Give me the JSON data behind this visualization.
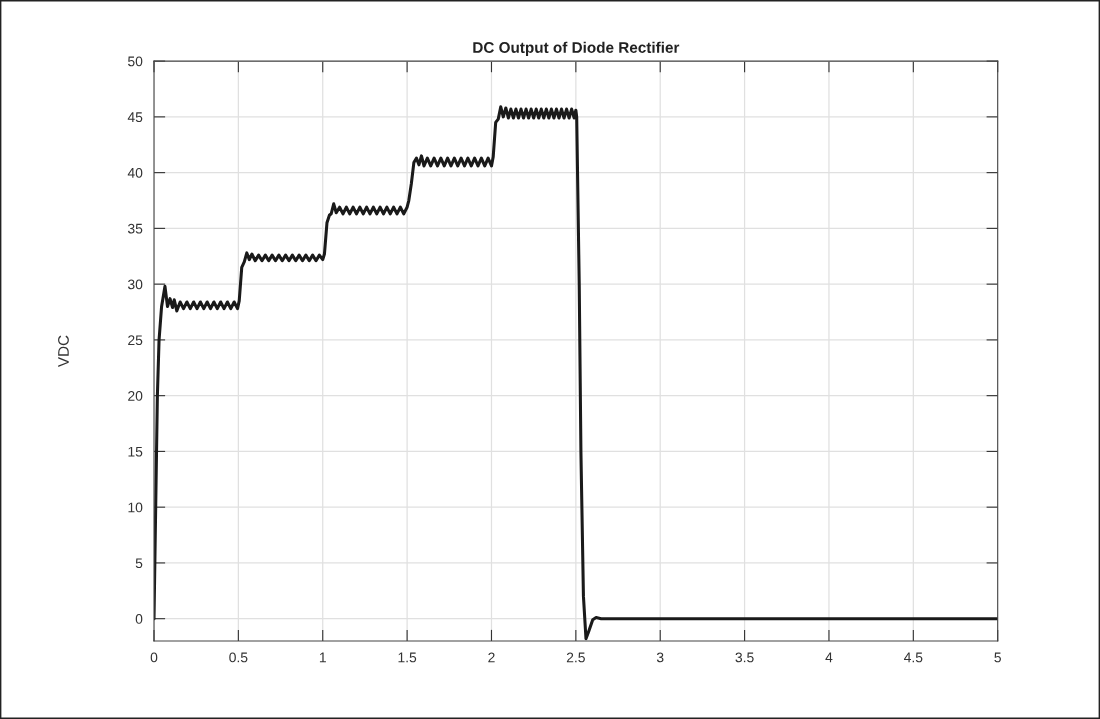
{
  "chart_data": {
    "type": "line",
    "title": "DC Output of Diode Rectifier",
    "ylabel": "VDC",
    "xlim": [
      0,
      5
    ],
    "xticks": [
      0,
      0.5,
      1,
      1.5,
      2,
      2.5,
      3,
      3.5,
      4,
      4.5,
      5
    ],
    "ylim": [
      -2,
      50
    ],
    "yticks": [
      0,
      5,
      10,
      15,
      20,
      25,
      30,
      35,
      40,
      45,
      50
    ],
    "grid": true,
    "legend": false,
    "series": [
      {
        "color": "#1a1a1a",
        "x": [
          0,
          0.01,
          0.02,
          0.03,
          0.045,
          0.065,
          0.08,
          0.095,
          0.11,
          0.12,
          0.135,
          0.155,
          0.175,
          0.195,
          0.215,
          0.235,
          0.255,
          0.275,
          0.295,
          0.315,
          0.335,
          0.355,
          0.375,
          0.395,
          0.415,
          0.435,
          0.455,
          0.475,
          0.495,
          0.505,
          0.52,
          0.535,
          0.55,
          0.565,
          0.58,
          0.6,
          0.62,
          0.64,
          0.66,
          0.68,
          0.7,
          0.72,
          0.74,
          0.76,
          0.78,
          0.8,
          0.82,
          0.84,
          0.86,
          0.88,
          0.9,
          0.92,
          0.94,
          0.96,
          0.98,
          1.0,
          1.01,
          1.025,
          1.04,
          1.05,
          1.065,
          1.08,
          1.1,
          1.12,
          1.14,
          1.16,
          1.18,
          1.2,
          1.22,
          1.24,
          1.26,
          1.28,
          1.3,
          1.32,
          1.34,
          1.36,
          1.38,
          1.4,
          1.42,
          1.44,
          1.46,
          1.48,
          1.5,
          1.51,
          1.525,
          1.54,
          1.555,
          1.57,
          1.585,
          1.6,
          1.62,
          1.64,
          1.66,
          1.68,
          1.7,
          1.72,
          1.74,
          1.76,
          1.78,
          1.8,
          1.82,
          1.84,
          1.86,
          1.88,
          1.9,
          1.92,
          1.94,
          1.96,
          1.98,
          2.0,
          2.01,
          2.025,
          2.04,
          2.055,
          2.07,
          2.085,
          2.1,
          2.115,
          2.13,
          2.145,
          2.16,
          2.175,
          2.19,
          2.205,
          2.22,
          2.235,
          2.25,
          2.265,
          2.28,
          2.295,
          2.31,
          2.325,
          2.34,
          2.355,
          2.37,
          2.385,
          2.4,
          2.415,
          2.43,
          2.445,
          2.46,
          2.475,
          2.49,
          2.5,
          2.505,
          2.51,
          2.52,
          2.53,
          2.545,
          2.56,
          2.575,
          2.6,
          2.62,
          2.65,
          3,
          5
        ],
        "values": [
          0,
          10,
          20,
          25,
          28,
          29.8,
          28.0,
          28.7,
          27.9,
          28.6,
          27.6,
          28.4,
          27.8,
          28.4,
          27.8,
          28.4,
          27.8,
          28.4,
          27.8,
          28.4,
          27.8,
          28.4,
          27.8,
          28.4,
          27.8,
          28.4,
          27.8,
          28.4,
          27.8,
          28.5,
          31.5,
          32.0,
          32.8,
          32.2,
          32.7,
          32.1,
          32.6,
          32.1,
          32.6,
          32.1,
          32.6,
          32.1,
          32.6,
          32.1,
          32.6,
          32.1,
          32.6,
          32.1,
          32.6,
          32.1,
          32.6,
          32.1,
          32.6,
          32.1,
          32.6,
          32.2,
          32.7,
          35.5,
          36.2,
          36.3,
          37.2,
          36.4,
          36.9,
          36.3,
          36.9,
          36.3,
          36.9,
          36.3,
          36.9,
          36.3,
          36.9,
          36.3,
          36.9,
          36.3,
          36.9,
          36.3,
          36.9,
          36.3,
          36.9,
          36.3,
          36.9,
          36.3,
          36.9,
          37.5,
          39.0,
          40.9,
          41.3,
          40.7,
          41.5,
          40.6,
          41.3,
          40.6,
          41.3,
          40.6,
          41.3,
          40.6,
          41.3,
          40.6,
          41.3,
          40.6,
          41.3,
          40.6,
          41.3,
          40.6,
          41.3,
          40.6,
          41.3,
          40.6,
          41.3,
          40.6,
          41.4,
          44.5,
          44.8,
          45.9,
          45.0,
          45.8,
          44.9,
          45.7,
          44.9,
          45.7,
          44.9,
          45.7,
          44.9,
          45.7,
          44.9,
          45.7,
          44.9,
          45.7,
          44.9,
          45.7,
          44.9,
          45.7,
          44.9,
          45.7,
          44.9,
          45.7,
          44.9,
          45.7,
          44.9,
          45.7,
          44.9,
          45.7,
          44.9,
          45.6,
          45.0,
          40,
          30,
          15,
          2,
          -1.8,
          -1.2,
          -0.1,
          0.1,
          0,
          0,
          0
        ]
      }
    ]
  }
}
